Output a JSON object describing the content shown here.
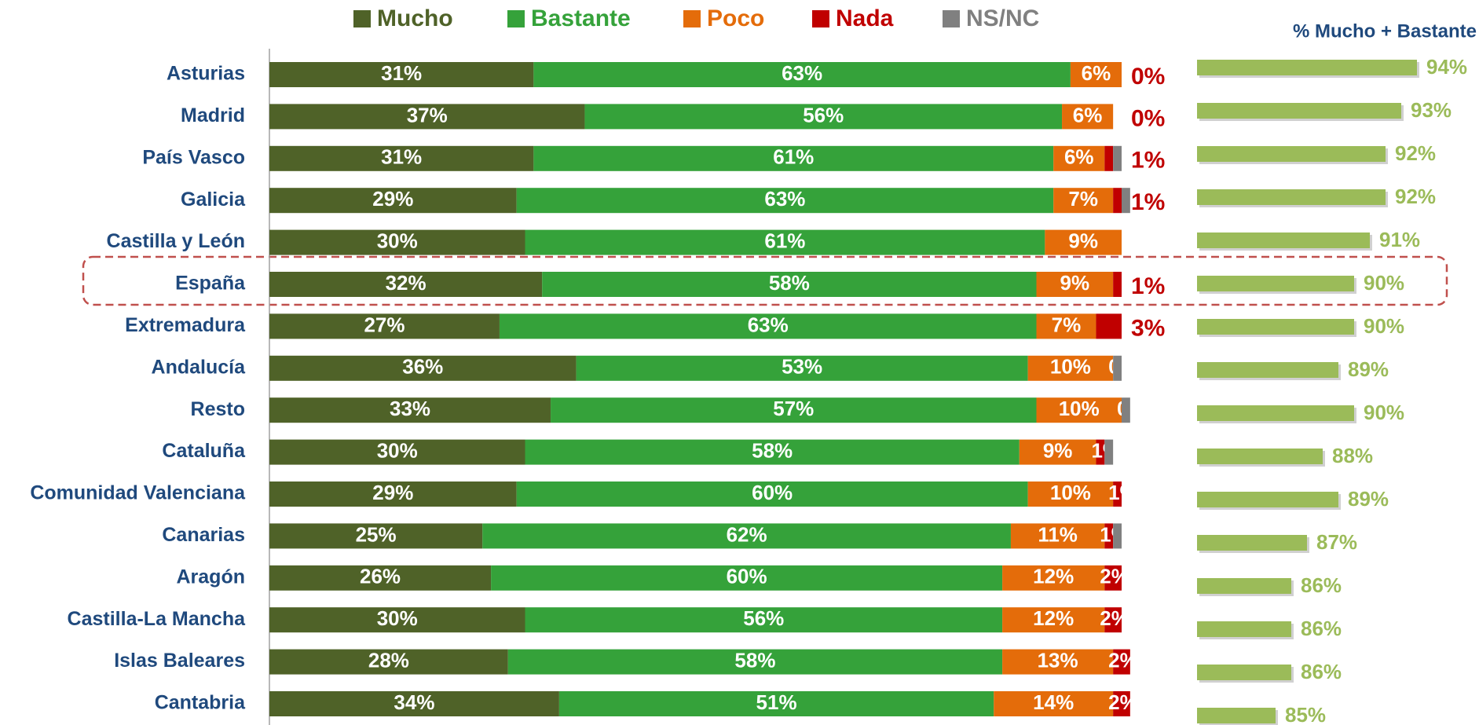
{
  "chart_data": [
    {
      "type": "stacked-bar",
      "orientation": "horizontal",
      "categories": [
        "Asturias",
        "Madrid",
        "País Vasco",
        "Galicia",
        "Castilla y León",
        "España",
        "Extremadura",
        "Andalucía",
        "Resto",
        "Cataluña",
        "Comunidad Valenciana",
        "Canarias",
        "Aragón",
        "Castilla-La Mancha",
        "Islas Baleares",
        "Cantabria"
      ],
      "xlim": [
        0,
        100
      ],
      "legend": "top",
      "series": [
        {
          "name": "Mucho",
          "color": "#4f6228",
          "values": [
            31,
            37,
            31,
            29,
            30,
            32,
            27,
            36,
            33,
            30,
            29,
            25,
            26,
            30,
            28,
            34
          ],
          "value_labels": [
            "31%",
            "37%",
            "31%",
            "29%",
            "30%",
            "32%",
            "27%",
            "36%",
            "33%",
            "30%",
            "29%",
            "25%",
            "26%",
            "30%",
            "28%",
            "34%"
          ]
        },
        {
          "name": "Bastante",
          "color": "#35a23a",
          "values": [
            63,
            56,
            61,
            63,
            61,
            58,
            63,
            53,
            57,
            58,
            60,
            62,
            60,
            56,
            58,
            51
          ],
          "value_labels": [
            "63%",
            "56%",
            "61%",
            "63%",
            "61%",
            "58%",
            "63%",
            "53%",
            "57%",
            "58%",
            "60%",
            "62%",
            "60%",
            "56%",
            "58%",
            "51%"
          ]
        },
        {
          "name": "Poco",
          "color": "#e46c0a",
          "values": [
            6,
            6,
            6,
            7,
            9,
            9,
            7,
            10,
            10,
            9,
            10,
            11,
            12,
            12,
            13,
            14
          ],
          "value_labels": [
            "6%",
            "6%",
            "6%",
            "7%",
            "9%",
            "9%",
            "7%",
            "10%",
            "10%",
            "9%",
            "10%",
            "11%",
            "12%",
            "12%",
            "13%",
            "14%"
          ]
        },
        {
          "name": "Nada",
          "color": "#c00000",
          "values": [
            0,
            0,
            1,
            1,
            0,
            1,
            3,
            0,
            0,
            1,
            1,
            1,
            2,
            2,
            2,
            2
          ],
          "value_labels": [
            "0%",
            "0%",
            "1%",
            "1%",
            null,
            "1%",
            "3%",
            "0%",
            "0%",
            "1%",
            "1%",
            "1%",
            "2%",
            "2%",
            "2%",
            "2%"
          ]
        },
        {
          "name": "NS/NC",
          "color": "#808080",
          "values": [
            0,
            0,
            1,
            1,
            0,
            0,
            0,
            1,
            1,
            1,
            0,
            1,
            0,
            0,
            0,
            0
          ]
        }
      ]
    },
    {
      "type": "bar",
      "orientation": "horizontal",
      "title": "% Mucho + Bastante",
      "color": "#9bbb59",
      "xlim": [
        80,
        95
      ],
      "values": [
        94,
        93,
        92,
        92,
        91,
        90,
        90,
        89,
        90,
        88,
        89,
        87,
        86,
        86,
        86,
        85
      ],
      "value_labels": [
        "94%",
        "93%",
        "92%",
        "92%",
        "91%",
        "90%",
        "90%",
        "89%",
        "90%",
        "88%",
        "89%",
        "87%",
        "86%",
        "86%",
        "86%",
        "85%"
      ]
    }
  ]
}
